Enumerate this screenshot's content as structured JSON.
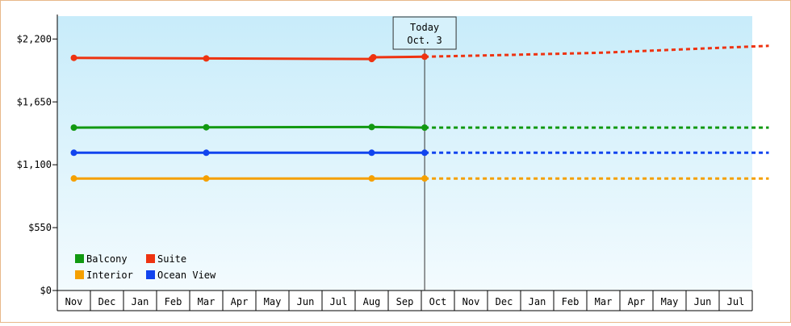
{
  "chart_data": {
    "type": "line",
    "x": [
      "Nov",
      "Dec",
      "Jan",
      "Feb",
      "Mar",
      "Apr",
      "May",
      "Jun",
      "Jul",
      "Aug",
      "Sep",
      "Oct",
      "Nov",
      "Dec",
      "Jan",
      "Feb",
      "Mar",
      "Apr",
      "May",
      "Jun",
      "Jul"
    ],
    "ylim": [
      0,
      2400
    ],
    "yticks": [
      0,
      550,
      1100,
      1650,
      2200
    ],
    "ytick_labels": [
      "$0",
      "$550",
      "$1,100",
      "$1,650",
      "$2,200"
    ],
    "today": {
      "label": "Today",
      "date": "Oct. 3",
      "x_index": 10.6
    },
    "series": [
      {
        "name": "Balcony",
        "color": "#119911",
        "actual": [
          [
            0,
            1425
          ],
          [
            4,
            1428
          ],
          [
            9,
            1430
          ],
          [
            10.6,
            1425
          ]
        ],
        "markers": [
          0,
          4,
          9,
          10.6
        ],
        "projected": [
          [
            10.6,
            1425
          ],
          [
            21,
            1425
          ]
        ]
      },
      {
        "name": "Suite",
        "color": "#ee3311",
        "actual": [
          [
            0,
            2035
          ],
          [
            4,
            2030
          ],
          [
            9,
            2025
          ],
          [
            9.05,
            2040
          ],
          [
            10.6,
            2045
          ]
        ],
        "markers": [
          0,
          4,
          9,
          9.05,
          10.6
        ],
        "projected": [
          [
            10.6,
            2045
          ],
          [
            13,
            2060
          ],
          [
            16,
            2080
          ],
          [
            18,
            2105
          ],
          [
            21,
            2140
          ]
        ]
      },
      {
        "name": "Interior",
        "color": "#f5a000",
        "actual": [
          [
            0,
            980
          ],
          [
            4,
            980
          ],
          [
            9,
            980
          ],
          [
            10.6,
            980
          ]
        ],
        "markers": [
          0,
          4,
          9,
          10.6
        ],
        "projected": [
          [
            10.6,
            980
          ],
          [
            21,
            980
          ]
        ]
      },
      {
        "name": "Ocean View",
        "color": "#1144ee",
        "actual": [
          [
            0,
            1205
          ],
          [
            4,
            1205
          ],
          [
            9,
            1205
          ],
          [
            10.6,
            1205
          ]
        ],
        "markers": [
          0,
          4,
          9,
          10.6
        ],
        "projected": [
          [
            10.6,
            1205
          ],
          [
            21,
            1205
          ]
        ]
      }
    ],
    "legend": {
      "placement": "bottom-left",
      "order": [
        "Balcony",
        "Suite",
        "Interior",
        "Ocean View"
      ]
    }
  }
}
